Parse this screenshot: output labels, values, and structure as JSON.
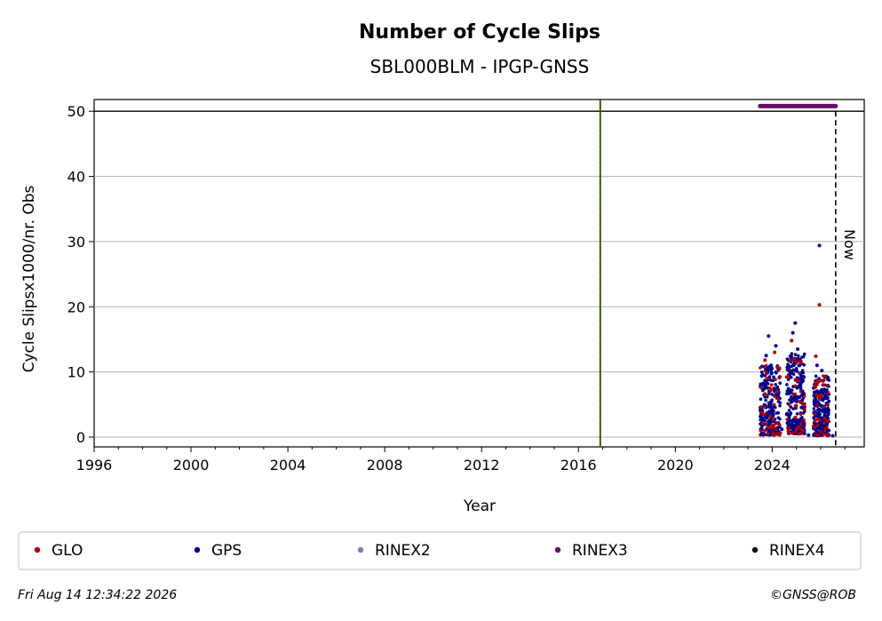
{
  "chart_data": {
    "type": "scatter",
    "title": "Number of Cycle Slips",
    "subtitle": "SBL000BLM - IPGP-GNSS",
    "xlabel": "Year",
    "ylabel": "Cycle Slipsx1000/nr. Obs",
    "xlim": [
      1996,
      2027.8
    ],
    "ylim": [
      -1.5,
      51.8
    ],
    "x_ticks": [
      "1996",
      "2000",
      "2004",
      "2008",
      "2012",
      "2016",
      "2020",
      "2024"
    ],
    "y_ticks": [
      "0",
      "10",
      "20",
      "30",
      "40",
      "50"
    ],
    "grid": "horizontal",
    "threshold_line": 50,
    "event_line_x": 2016.9,
    "now_line_x": 2026.62,
    "now_label": "Now",
    "series": [
      {
        "name": "GLO",
        "color": "#b00000",
        "points": [
          [
            2023.6,
            3.5
          ],
          [
            2023.7,
            11.8
          ],
          [
            2023.8,
            9.0
          ],
          [
            2023.9,
            7.5
          ],
          [
            2024.1,
            13.0
          ],
          [
            2024.3,
            10.5
          ],
          [
            2024.6,
            9.2
          ],
          [
            2024.8,
            14.8
          ],
          [
            2024.9,
            12.0
          ],
          [
            2025.0,
            11.5
          ],
          [
            2025.3,
            5.0
          ],
          [
            2025.8,
            12.4
          ],
          [
            2025.95,
            20.3
          ],
          [
            2026.1,
            8.0
          ],
          [
            2026.3,
            2.5
          ]
        ]
      },
      {
        "name": "GPS",
        "color": "#00008b",
        "points": [
          [
            2023.55,
            0.5
          ],
          [
            2023.65,
            8.0
          ],
          [
            2023.75,
            12.5
          ],
          [
            2023.85,
            15.5
          ],
          [
            2023.95,
            11.0
          ],
          [
            2024.05,
            4.0
          ],
          [
            2024.15,
            14.0
          ],
          [
            2024.25,
            6.5
          ],
          [
            2024.4,
            1.2
          ],
          [
            2024.6,
            3.5
          ],
          [
            2024.75,
            10.0
          ],
          [
            2024.85,
            16.0
          ],
          [
            2024.95,
            17.5
          ],
          [
            2025.05,
            13.5
          ],
          [
            2025.15,
            9.0
          ],
          [
            2025.3,
            2.0
          ],
          [
            2025.5,
            0.3
          ],
          [
            2025.75,
            5.0
          ],
          [
            2025.85,
            11.0
          ],
          [
            2025.95,
            29.4
          ],
          [
            2026.05,
            10.2
          ],
          [
            2026.15,
            6.0
          ],
          [
            2026.3,
            1.0
          ],
          [
            2026.5,
            0.2
          ]
        ]
      },
      {
        "name": "RINEX2",
        "color": "#7b7bc4",
        "points": []
      },
      {
        "name": "RINEX3",
        "color": "#6a0a6a",
        "points": []
      },
      {
        "name": "RINEX4",
        "color": "#1a0020",
        "points": []
      }
    ],
    "band_blobs": [
      {
        "series": "GPS",
        "x_start": 2023.5,
        "x_end": 2024.35,
        "y_low": 0.3,
        "y_high": 11.0
      },
      {
        "series": "GPS",
        "x_start": 2024.6,
        "x_end": 2025.35,
        "y_low": 0.5,
        "y_high": 13.0
      },
      {
        "series": "GPS",
        "x_start": 2025.7,
        "x_end": 2026.35,
        "y_low": 0.2,
        "y_high": 9.5
      }
    ],
    "rinex3_bar": {
      "x_start": 2023.5,
      "x_end": 2026.62,
      "y": 50.8
    }
  },
  "legend": {
    "items": [
      {
        "label": "GLO",
        "color": "#b00000"
      },
      {
        "label": "GPS",
        "color": "#00008b"
      },
      {
        "label": "RINEX2",
        "color": "#7b7bc4"
      },
      {
        "label": "RINEX3",
        "color": "#6a0a6a"
      },
      {
        "label": "RINEX4",
        "color": "#1a0020"
      }
    ]
  },
  "footer": {
    "timestamp": "Fri Aug 14 12:34:22 2026",
    "credit": "©GNSS@ROB"
  }
}
